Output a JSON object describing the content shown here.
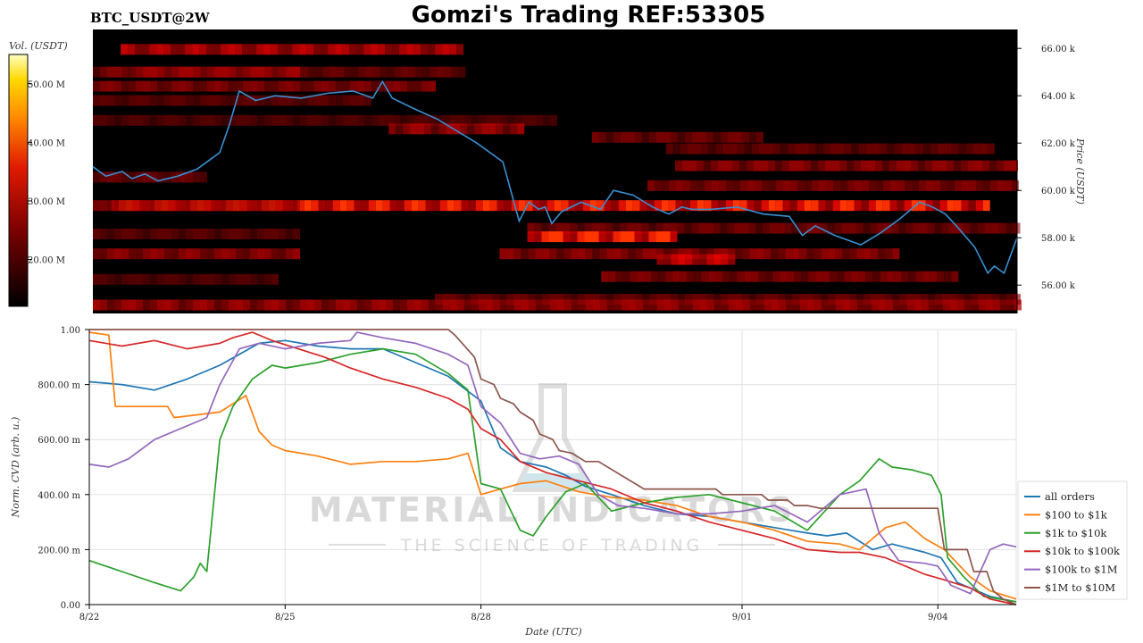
{
  "header": {
    "symbol": "BTC_USDT@2W",
    "title": "Gomzi's Trading REF:53305"
  },
  "watermark": {
    "line1": "MATERIAL INDICATORS",
    "line2": "THE SCIENCE OF TRADING"
  },
  "chart_data": [
    {
      "type": "heatmap",
      "name": "orderbook-heatmap",
      "ylabel": "Price (USDT)",
      "ylim": [
        54800,
        66800
      ],
      "y_ticks": [
        "56.00 k",
        "58.00 k",
        "60.00 k",
        "62.00 k",
        "64.00 k",
        "66.00 k"
      ],
      "y_tick_values": [
        56000,
        58000,
        60000,
        62000,
        64000,
        66000
      ],
      "colorbar": {
        "label": "Vol. (USDT)",
        "ticks": [
          "20.00 M",
          "30.00 M",
          "40.00 M",
          "50.00 M"
        ],
        "tick_values": [
          20,
          30,
          40,
          50
        ],
        "range": [
          12,
          55
        ]
      },
      "xlim": [
        0,
        14.2
      ],
      "price_series": {
        "x": [
          0,
          0.2,
          0.45,
          0.6,
          0.8,
          1.0,
          1.3,
          1.6,
          1.8,
          1.95,
          2.1,
          2.25,
          2.5,
          2.8,
          3.2,
          3.6,
          4.0,
          4.3,
          4.45,
          4.6,
          4.9,
          5.3,
          5.9,
          6.3,
          6.55,
          6.7,
          6.85,
          6.95,
          7.05,
          7.2,
          7.5,
          7.8,
          8.0,
          8.3,
          8.6,
          8.85,
          9.05,
          9.2,
          9.5,
          9.9,
          10.3,
          10.7,
          10.9,
          11.1,
          11.4,
          11.8,
          12.1,
          12.4,
          12.7,
          12.9,
          13.1,
          13.3,
          13.55,
          13.75,
          13.85,
          14.0,
          14.2
        ],
        "y": [
          61000,
          60600,
          60800,
          60500,
          60700,
          60400,
          60600,
          60900,
          61300,
          61600,
          62800,
          64200,
          63800,
          64000,
          63900,
          64100,
          64200,
          63900,
          64600,
          63900,
          63500,
          63000,
          62000,
          61200,
          58700,
          59500,
          59200,
          59300,
          58600,
          59100,
          59500,
          59200,
          60000,
          59800,
          59300,
          59000,
          59300,
          59200,
          59200,
          59300,
          59000,
          58900,
          58100,
          58500,
          58100,
          57700,
          58200,
          58800,
          59500,
          59300,
          59000,
          58400,
          57600,
          56500,
          56800,
          56500,
          58000
        ]
      }
    },
    {
      "type": "line",
      "name": "cvd-lines",
      "xlabel": "Date (UTC)",
      "ylabel": "Norm. CVD (arb. u.)",
      "ylim": [
        0,
        1
      ],
      "y_ticks": [
        "0.00",
        "200.00 m",
        "400.00 m",
        "600.00 m",
        "800.00 m",
        "1.00"
      ],
      "y_tick_values": [
        0,
        0.2,
        0.4,
        0.6,
        0.8,
        1.0
      ],
      "xlim": [
        0,
        14.2
      ],
      "x_ticks": [
        "8/22",
        "8/25",
        "8/28",
        "9/01",
        "9/04"
      ],
      "x_tick_values": [
        0,
        3,
        6,
        10,
        13
      ],
      "grid": true,
      "legend_position": "right",
      "series": [
        {
          "name": "all orders",
          "color": "#1f77b4",
          "x": [
            0,
            0.5,
            1,
            1.5,
            2,
            2.6,
            3,
            3.5,
            4,
            4.5,
            5,
            5.5,
            6,
            6.3,
            6.6,
            7,
            7.3,
            7.6,
            8,
            8.5,
            9,
            9.5,
            10,
            10.5,
            11,
            11.3,
            11.6,
            12,
            12.3,
            12.8,
            13.05,
            13.3,
            13.5,
            13.8,
            14.2
          ],
          "y": [
            0.81,
            0.8,
            0.78,
            0.82,
            0.87,
            0.95,
            0.96,
            0.94,
            0.93,
            0.93,
            0.88,
            0.83,
            0.74,
            0.57,
            0.52,
            0.5,
            0.47,
            0.43,
            0.4,
            0.36,
            0.33,
            0.32,
            0.3,
            0.28,
            0.26,
            0.25,
            0.26,
            0.2,
            0.22,
            0.19,
            0.17,
            0.08,
            0.06,
            0.03,
            0.01
          ]
        },
        {
          "name": "$100 to $1k",
          "color": "#ff7f0e",
          "x": [
            0,
            0.3,
            0.4,
            1.2,
            1.3,
            2.0,
            2.4,
            2.6,
            2.8,
            3.0,
            3.5,
            4.0,
            4.5,
            5.0,
            5.5,
            5.8,
            6.0,
            6.3,
            6.6,
            7,
            7.5,
            8,
            8.5,
            9,
            9.5,
            10,
            10.5,
            11,
            11.5,
            11.8,
            12.2,
            12.5,
            12.8,
            13.1,
            13.5,
            13.8,
            14.2
          ],
          "y": [
            0.99,
            0.98,
            0.72,
            0.72,
            0.68,
            0.7,
            0.76,
            0.63,
            0.58,
            0.56,
            0.54,
            0.51,
            0.52,
            0.52,
            0.53,
            0.55,
            0.4,
            0.42,
            0.44,
            0.45,
            0.41,
            0.39,
            0.38,
            0.36,
            0.32,
            0.3,
            0.27,
            0.23,
            0.22,
            0.2,
            0.28,
            0.3,
            0.24,
            0.2,
            0.1,
            0.05,
            0.02
          ]
        },
        {
          "name": "$1k to $10k",
          "color": "#2ca02c",
          "x": [
            0,
            0.5,
            1,
            1.4,
            1.6,
            1.7,
            1.8,
            2.0,
            2.2,
            2.5,
            2.8,
            3.0,
            3.5,
            4.0,
            4.5,
            5.0,
            5.5,
            5.8,
            6.0,
            6.3,
            6.6,
            6.8,
            7.0,
            7.3,
            7.6,
            8,
            8.5,
            9,
            9.5,
            10,
            10.5,
            11,
            11.5,
            11.8,
            12.1,
            12.3,
            12.6,
            12.9,
            13.05,
            13.15,
            13.4,
            13.7,
            14.2
          ],
          "y": [
            0.16,
            0.12,
            0.08,
            0.05,
            0.1,
            0.15,
            0.12,
            0.6,
            0.72,
            0.82,
            0.87,
            0.86,
            0.88,
            0.91,
            0.93,
            0.91,
            0.84,
            0.78,
            0.44,
            0.42,
            0.27,
            0.25,
            0.32,
            0.41,
            0.44,
            0.34,
            0.37,
            0.39,
            0.4,
            0.37,
            0.34,
            0.27,
            0.4,
            0.45,
            0.53,
            0.5,
            0.49,
            0.47,
            0.4,
            0.17,
            0.1,
            0.03,
            0.01
          ]
        },
        {
          "name": "$10k to $100k",
          "color": "#d62728",
          "x": [
            0,
            0.5,
            1,
            1.5,
            2.0,
            2.2,
            2.5,
            2.8,
            3.2,
            3.6,
            4.0,
            4.5,
            5.0,
            5.5,
            5.8,
            6.0,
            6.3,
            6.6,
            7,
            7.5,
            8,
            8.5,
            9,
            9.5,
            10,
            10.5,
            11,
            11.5,
            11.8,
            12.2,
            12.8,
            13.1,
            13.5,
            13.8,
            14.2
          ],
          "y": [
            0.96,
            0.94,
            0.96,
            0.93,
            0.95,
            0.97,
            0.99,
            0.96,
            0.93,
            0.9,
            0.86,
            0.82,
            0.79,
            0.75,
            0.71,
            0.64,
            0.6,
            0.52,
            0.48,
            0.45,
            0.42,
            0.37,
            0.34,
            0.3,
            0.27,
            0.24,
            0.2,
            0.19,
            0.19,
            0.17,
            0.11,
            0.09,
            0.06,
            0.02,
            0.0
          ]
        },
        {
          "name": "$100k to $1M",
          "color": "#9467bd",
          "x": [
            0,
            0.3,
            0.6,
            1.0,
            1.4,
            1.8,
            2.0,
            2.3,
            2.6,
            3.0,
            3.5,
            4.0,
            4.1,
            4.5,
            5.0,
            5.5,
            5.8,
            6.0,
            6.3,
            6.6,
            6.9,
            7.2,
            7.5,
            7.8,
            8.1,
            8.5,
            9,
            9.5,
            10,
            10.5,
            11,
            11.5,
            11.9,
            12.1,
            12.4,
            12.8,
            13.0,
            13.2,
            13.5,
            13.8,
            14.0,
            14.2
          ],
          "y": [
            0.51,
            0.5,
            0.53,
            0.6,
            0.64,
            0.68,
            0.8,
            0.93,
            0.95,
            0.93,
            0.95,
            0.96,
            0.99,
            0.97,
            0.95,
            0.91,
            0.87,
            0.72,
            0.66,
            0.55,
            0.53,
            0.54,
            0.51,
            0.4,
            0.36,
            0.35,
            0.33,
            0.33,
            0.34,
            0.36,
            0.3,
            0.4,
            0.42,
            0.26,
            0.16,
            0.15,
            0.14,
            0.07,
            0.04,
            0.2,
            0.22,
            0.21
          ]
        },
        {
          "name": "$1M to $10M",
          "color": "#8c564b",
          "x": [
            0,
            2.0,
            2.1,
            5.5,
            5.6,
            5.9,
            6.0,
            6.2,
            6.3,
            6.5,
            6.6,
            6.8,
            6.9,
            7.1,
            7.2,
            7.4,
            7.6,
            7.8,
            8.5,
            9.6,
            9.7,
            10.3,
            10.4,
            10.7,
            10.8,
            11.0,
            11.2,
            13.0,
            13.1,
            13.45,
            13.55,
            13.75,
            13.85,
            14.0,
            14.2
          ],
          "y": [
            1.0,
            1.0,
            1.0,
            1.0,
            0.98,
            0.9,
            0.82,
            0.8,
            0.75,
            0.73,
            0.7,
            0.67,
            0.62,
            0.6,
            0.56,
            0.55,
            0.52,
            0.52,
            0.42,
            0.42,
            0.4,
            0.4,
            0.38,
            0.38,
            0.36,
            0.36,
            0.35,
            0.35,
            0.2,
            0.2,
            0.12,
            0.12,
            0.05,
            0.02,
            0.0
          ]
        }
      ]
    }
  ]
}
